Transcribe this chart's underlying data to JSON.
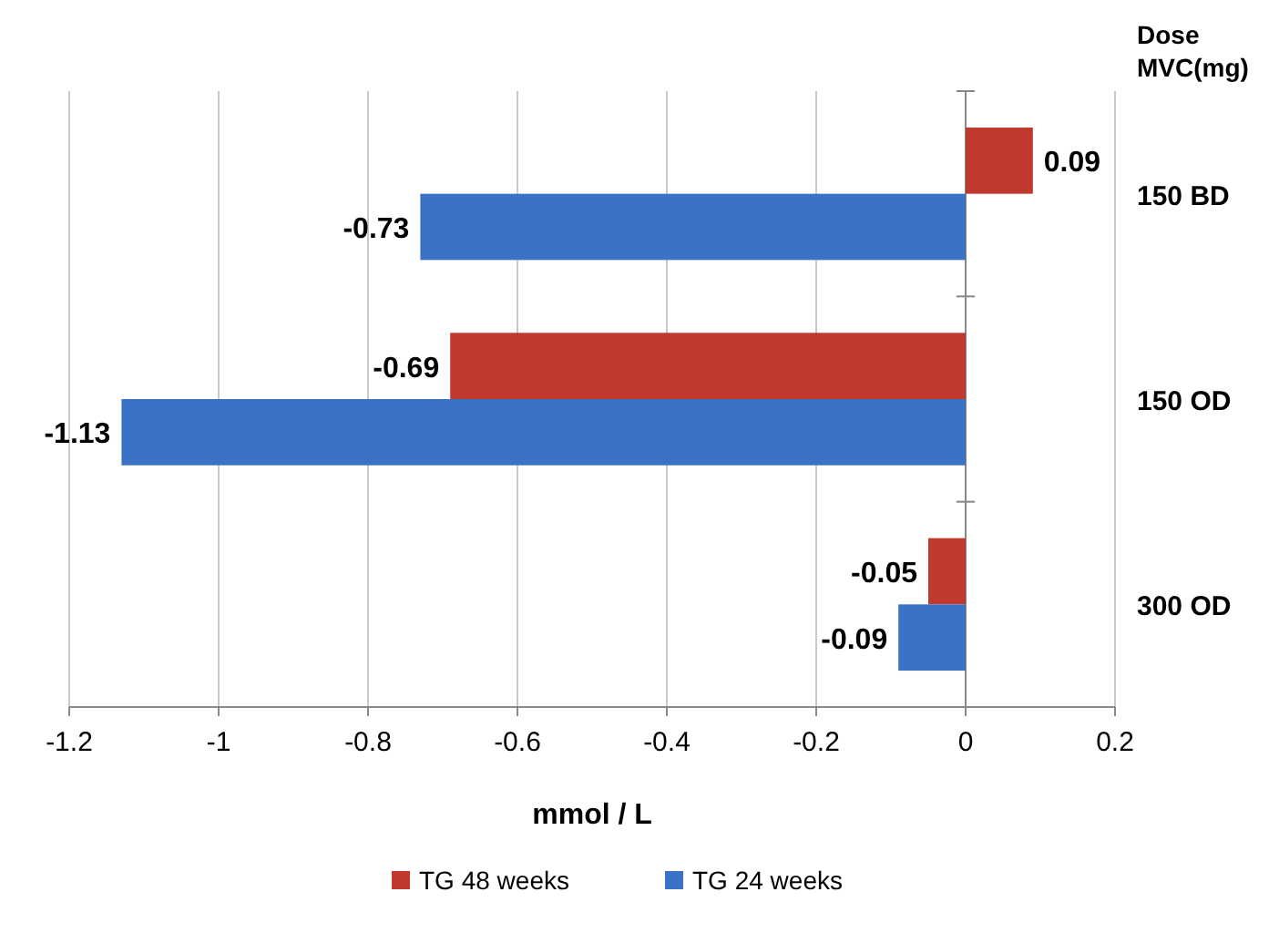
{
  "chart_data": {
    "type": "bar",
    "orientation": "horizontal",
    "xlabel": "mmol / L",
    "ylabel": "Dose MVC(mg)",
    "categories": [
      "150 BD",
      "150 OD",
      "300 OD"
    ],
    "series": [
      {
        "name": "TG 48 weeks",
        "color": "#c0392f",
        "values": [
          0.09,
          -0.69,
          -0.05
        ]
      },
      {
        "name": "TG 24 weeks",
        "color": "#3a72c6",
        "values": [
          -0.73,
          -1.13,
          -0.09
        ]
      }
    ],
    "xlim": [
      -1.2,
      0.2
    ],
    "xticks": [
      -1.2,
      -1,
      -0.8,
      -0.6,
      -0.4,
      -0.2,
      0,
      0.2
    ],
    "grid": "x",
    "data_labels": true,
    "legend": "bottom"
  }
}
